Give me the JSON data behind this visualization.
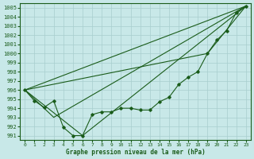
{
  "xlabel": "Graphe pression niveau de la mer (hPa)",
  "background_color": "#c8e8e8",
  "grid_color": "#a8cece",
  "line_color": "#1a5c1a",
  "xlim": [
    -0.5,
    23.5
  ],
  "ylim": [
    990.5,
    1005.5
  ],
  "xticks": [
    0,
    1,
    2,
    3,
    4,
    5,
    6,
    7,
    8,
    9,
    10,
    11,
    12,
    13,
    14,
    15,
    16,
    17,
    18,
    19,
    20,
    21,
    22,
    23
  ],
  "yticks": [
    991,
    992,
    993,
    994,
    995,
    996,
    997,
    998,
    999,
    1000,
    1001,
    1002,
    1003,
    1004,
    1005
  ],
  "main_curve": [
    996.0,
    994.8,
    994.1,
    994.8,
    991.9,
    991.0,
    991.0,
    993.3,
    993.6,
    993.6,
    994.0,
    994.0,
    993.8,
    993.8,
    994.7,
    995.2,
    996.6,
    997.4,
    998.0,
    1000.0,
    1001.5,
    1002.5,
    1004.5,
    1005.2
  ],
  "straight_lines": [
    {
      "x": [
        0,
        23
      ],
      "y": [
        996.0,
        1005.2
      ]
    },
    {
      "x": [
        0,
        19,
        23
      ],
      "y": [
        996.0,
        1000.0,
        1005.2
      ]
    },
    {
      "x": [
        0,
        3,
        23
      ],
      "y": [
        996.0,
        993.0,
        1005.2
      ]
    },
    {
      "x": [
        0,
        6,
        23
      ],
      "y": [
        996.0,
        991.0,
        1005.2
      ]
    }
  ]
}
